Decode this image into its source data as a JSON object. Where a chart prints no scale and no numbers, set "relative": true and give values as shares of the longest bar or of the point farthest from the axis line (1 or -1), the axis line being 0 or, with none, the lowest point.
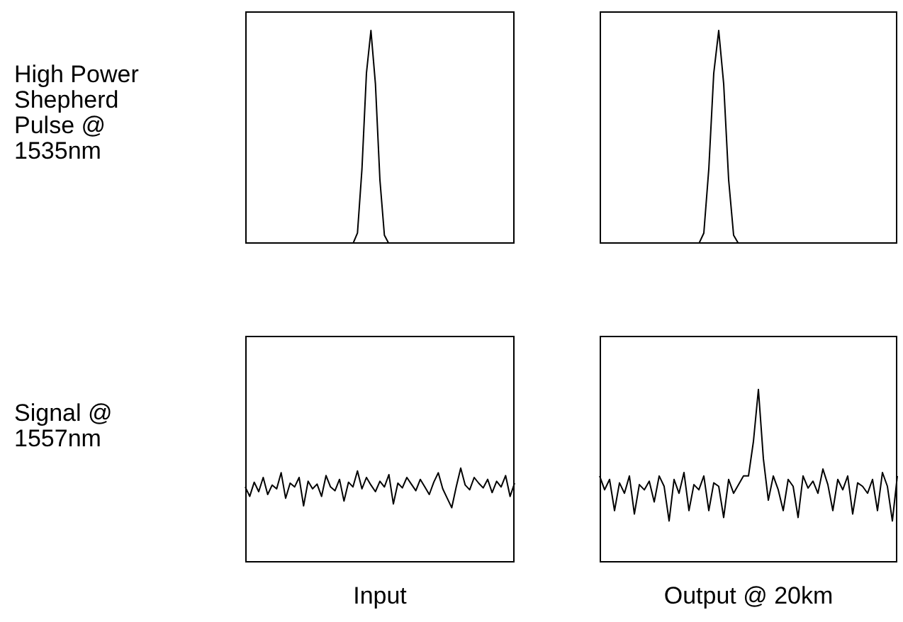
{
  "chart_data": [
    {
      "type": "line",
      "relative": true,
      "marker": "none",
      "ylabel": "High Power Shepherd Pulse @ 1535nm",
      "categories": [
        null,
        null,
        null,
        null,
        null,
        null,
        null,
        null,
        null,
        null,
        null,
        null,
        null,
        null,
        null,
        null,
        null,
        null,
        null,
        null,
        null,
        null,
        null,
        null,
        null,
        null,
        null,
        null,
        null,
        null,
        null,
        null,
        null,
        null,
        null,
        null,
        null,
        null,
        null,
        null,
        null,
        null,
        null,
        null,
        null,
        null,
        null,
        null,
        null,
        null,
        null,
        null,
        null,
        null,
        null,
        null,
        null,
        null,
        null,
        null,
        null
      ],
      "series": [
        {
          "color": "#000000",
          "values": [
            0,
            0,
            0,
            0,
            0,
            0,
            0,
            0,
            0,
            0,
            0,
            0,
            0,
            0,
            0,
            0,
            0,
            0,
            0,
            0,
            0,
            0,
            0,
            0,
            0,
            0.05,
            0.35,
            0.8,
            1,
            0.75,
            0.3,
            0.04,
            0,
            0,
            0,
            0,
            0,
            0,
            0,
            0,
            0,
            0,
            0,
            0,
            0,
            0,
            0,
            0,
            0,
            0,
            0,
            0,
            0,
            0,
            0,
            0,
            0,
            0,
            0,
            0,
            0
          ]
        }
      ]
    },
    {
      "type": "line",
      "relative": true,
      "marker": "none",
      "categories": [
        null,
        null,
        null,
        null,
        null,
        null,
        null,
        null,
        null,
        null,
        null,
        null,
        null,
        null,
        null,
        null,
        null,
        null,
        null,
        null,
        null,
        null,
        null,
        null,
        null,
        null,
        null,
        null,
        null,
        null,
        null,
        null,
        null,
        null,
        null,
        null,
        null,
        null,
        null,
        null,
        null,
        null,
        null,
        null,
        null,
        null,
        null,
        null,
        null,
        null,
        null,
        null,
        null,
        null,
        null,
        null,
        null,
        null,
        null,
        null,
        null
      ],
      "series": [
        {
          "color": "#000000",
          "values": [
            0,
            0,
            0,
            0,
            0,
            0,
            0,
            0,
            0,
            0,
            0,
            0,
            0,
            0,
            0,
            0,
            0,
            0,
            0,
            0,
            0,
            0.05,
            0.35,
            0.8,
            1,
            0.75,
            0.3,
            0.04,
            0,
            0,
            0,
            0,
            0,
            0,
            0,
            0,
            0,
            0,
            0,
            0,
            0,
            0,
            0,
            0,
            0,
            0,
            0,
            0,
            0,
            0,
            0,
            0,
            0,
            0,
            0,
            0,
            0,
            0,
            0,
            0,
            0
          ]
        }
      ]
    },
    {
      "type": "line",
      "relative": true,
      "marker": "none",
      "ylabel": "Signal @ 1557nm",
      "xlabel": "Input",
      "categories": [
        null,
        null,
        null,
        null,
        null,
        null,
        null,
        null,
        null,
        null,
        null,
        null,
        null,
        null,
        null,
        null,
        null,
        null,
        null,
        null,
        null,
        null,
        null,
        null,
        null,
        null,
        null,
        null,
        null,
        null,
        null,
        null,
        null,
        null,
        null,
        null,
        null,
        null,
        null,
        null,
        null,
        null,
        null,
        null,
        null,
        null,
        null,
        null,
        null,
        null,
        null,
        null,
        null,
        null,
        null,
        null,
        null,
        null,
        null,
        null,
        null
      ],
      "series": [
        {
          "color": "#000000",
          "values": [
            0.8,
            0.7,
            0.85,
            0.75,
            0.9,
            0.72,
            0.82,
            0.78,
            0.95,
            0.68,
            0.84,
            0.8,
            0.9,
            0.6,
            0.86,
            0.78,
            0.83,
            0.7,
            0.92,
            0.8,
            0.76,
            0.88,
            0.65,
            0.85,
            0.8,
            0.97,
            0.78,
            0.9,
            0.82,
            0.75,
            0.86,
            0.8,
            0.93,
            0.62,
            0.84,
            0.79,
            0.9,
            0.83,
            0.76,
            0.88,
            0.8,
            0.72,
            0.85,
            0.95,
            0.78,
            0.68,
            0.58,
            0.8,
            1,
            0.82,
            0.77,
            0.9,
            0.84,
            0.79,
            0.88,
            0.74,
            0.86,
            0.8,
            0.92,
            0.7,
            0.84
          ]
        }
      ]
    },
    {
      "type": "line",
      "relative": true,
      "marker": "none",
      "xlabel": "Output @ 20km",
      "categories": [
        null,
        null,
        null,
        null,
        null,
        null,
        null,
        null,
        null,
        null,
        null,
        null,
        null,
        null,
        null,
        null,
        null,
        null,
        null,
        null,
        null,
        null,
        null,
        null,
        null,
        null,
        null,
        null,
        null,
        null,
        null,
        null,
        null,
        null,
        null,
        null,
        null,
        null,
        null,
        null,
        null,
        null,
        null,
        null,
        null,
        null,
        null,
        null,
        null,
        null,
        null,
        null,
        null,
        null,
        null,
        null,
        null,
        null,
        null,
        null,
        null
      ],
      "series": [
        {
          "color": "#000000",
          "values": [
            0.5,
            0.42,
            0.48,
            0.3,
            0.46,
            0.4,
            0.5,
            0.28,
            0.45,
            0.42,
            0.47,
            0.35,
            0.5,
            0.44,
            0.24,
            0.48,
            0.4,
            0.52,
            0.3,
            0.45,
            0.42,
            0.5,
            0.3,
            0.46,
            0.44,
            0.26,
            0.48,
            0.4,
            0.45,
            0.5,
            0.5,
            0.7,
            1,
            0.6,
            0.36,
            0.5,
            0.42,
            0.3,
            0.48,
            0.44,
            0.26,
            0.5,
            0.43,
            0.47,
            0.4,
            0.54,
            0.45,
            0.3,
            0.48,
            0.42,
            0.5,
            0.28,
            0.46,
            0.44,
            0.4,
            0.48,
            0.3,
            0.52,
            0.44,
            0.24,
            0.5
          ]
        }
      ]
    }
  ]
}
